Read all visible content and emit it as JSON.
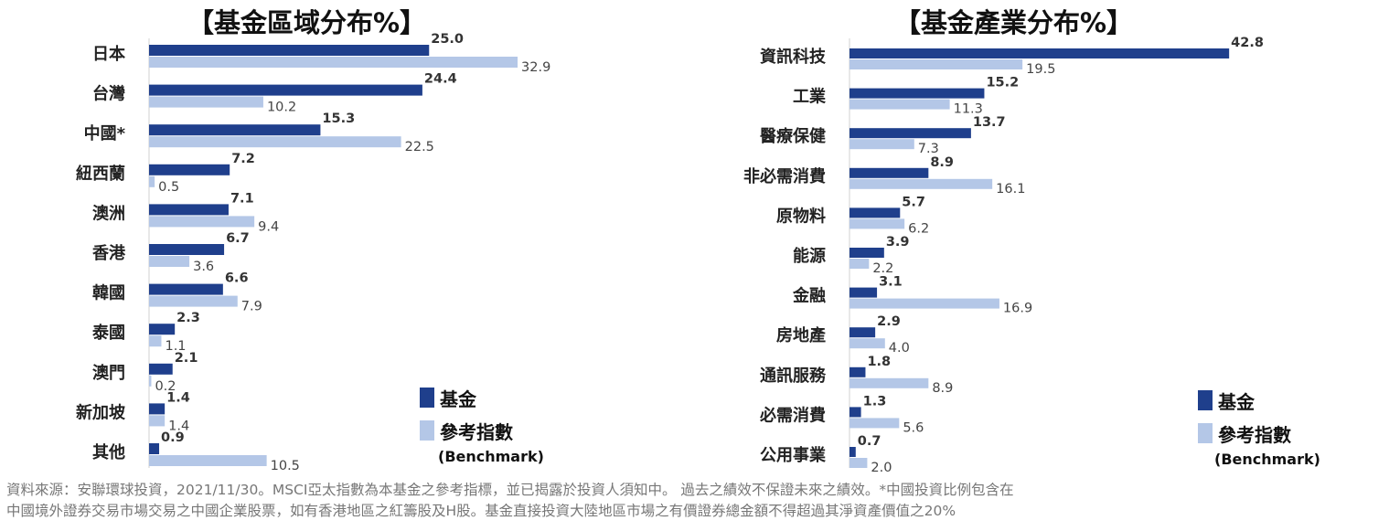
{
  "colors": {
    "fund": "#1f3f8c",
    "benchmark": "#b4c7e7",
    "axis": "#d0d0d0",
    "label": "#222222"
  },
  "legend": {
    "fund": "基金",
    "benchmark": "參考指數",
    "benchmark_en": "(Benchmark)"
  },
  "chart_data": [
    {
      "type": "bar",
      "orientation": "horizontal",
      "title": "【基金區域分布%】",
      "categories": [
        "日本",
        "台灣",
        "中國*",
        "紐西蘭",
        "澳洲",
        "香港",
        "韓國",
        "泰國",
        "澳門",
        "新加坡",
        "其他"
      ],
      "series": [
        {
          "name": "基金",
          "values": [
            25.0,
            24.4,
            15.3,
            7.2,
            7.1,
            6.7,
            6.6,
            2.3,
            2.1,
            1.4,
            0.9
          ]
        },
        {
          "name": "參考指數",
          "values": [
            32.9,
            10.2,
            22.5,
            0.5,
            9.4,
            3.6,
            7.9,
            1.1,
            0.2,
            1.4,
            10.5
          ]
        }
      ],
      "legend_position": "bottom-right",
      "grid": false
    },
    {
      "type": "bar",
      "orientation": "horizontal",
      "title": "【基金產業分布%】",
      "categories": [
        "資訊科技",
        "工業",
        "醫療保健",
        "非必需消費",
        "原物料",
        "能源",
        "金融",
        "房地產",
        "通訊服務",
        "必需消費",
        "公用事業"
      ],
      "series": [
        {
          "name": "基金",
          "values": [
            42.8,
            15.2,
            13.7,
            8.9,
            5.7,
            3.9,
            3.1,
            2.9,
            1.8,
            1.3,
            0.7
          ]
        },
        {
          "name": "參考指數",
          "values": [
            19.5,
            11.3,
            7.3,
            16.1,
            6.2,
            2.2,
            16.9,
            4.0,
            8.9,
            5.6,
            2.0
          ]
        }
      ],
      "legend_position": "bottom-right",
      "grid": false
    }
  ],
  "footnote": {
    "line1": "資料來源：安聯環球投資，2021/11/30。MSCI亞太指數為本基金之參考指標，並已揭露於投資人須知中。 過去之績效不保證未來之績效。*中國投資比例包含在",
    "line2": "中國境外證券交易市場交易之中國企業股票，如有香港地區之紅籌股及H股。基金直接投資大陸地區市場之有價證券總金額不得超過其淨資產價值之20%"
  }
}
